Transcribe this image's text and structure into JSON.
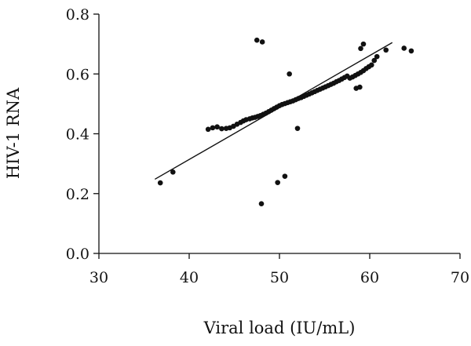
{
  "chart_data": {
    "type": "scatter",
    "title": "",
    "xlabel": "Viral load (IU/mL)",
    "ylabel": "HIV-1 RNA",
    "xlim": [
      30,
      70
    ],
    "ylim": [
      0.0,
      0.8
    ],
    "x_ticks": [
      30,
      40,
      50,
      60,
      70
    ],
    "x_tick_labels": [
      "30",
      "40",
      "50",
      "60",
      "70"
    ],
    "y_ticks": [
      0.0,
      0.2,
      0.4,
      0.6,
      0.8
    ],
    "y_tick_labels": [
      "0.0",
      "0.2",
      "0.4",
      "0.6",
      "0.8"
    ],
    "grid": false,
    "legend": "none",
    "colors": {
      "points": "#111111",
      "line": "#111111"
    },
    "trend_line": {
      "x": [
        36.2,
        62.5
      ],
      "y": [
        0.248,
        0.705
      ]
    },
    "series": [
      {
        "points": [
          {
            "x": 36.8,
            "y": 0.236
          },
          {
            "x": 38.2,
            "y": 0.272
          },
          {
            "x": 48.0,
            "y": 0.166
          },
          {
            "x": 49.8,
            "y": 0.237
          },
          {
            "x": 50.6,
            "y": 0.258
          },
          {
            "x": 52.0,
            "y": 0.418
          },
          {
            "x": 47.5,
            "y": 0.713
          },
          {
            "x": 48.1,
            "y": 0.707
          },
          {
            "x": 51.1,
            "y": 0.6
          },
          {
            "x": 42.1,
            "y": 0.415
          },
          {
            "x": 42.6,
            "y": 0.42
          },
          {
            "x": 43.1,
            "y": 0.423
          },
          {
            "x": 43.6,
            "y": 0.417
          },
          {
            "x": 44.1,
            "y": 0.418
          },
          {
            "x": 44.5,
            "y": 0.42
          },
          {
            "x": 44.9,
            "y": 0.425
          },
          {
            "x": 45.3,
            "y": 0.432
          },
          {
            "x": 45.7,
            "y": 0.438
          },
          {
            "x": 46.0,
            "y": 0.443
          },
          {
            "x": 46.3,
            "y": 0.447
          },
          {
            "x": 46.7,
            "y": 0.45
          },
          {
            "x": 47.0,
            "y": 0.453
          },
          {
            "x": 47.3,
            "y": 0.455
          },
          {
            "x": 47.6,
            "y": 0.458
          },
          {
            "x": 47.9,
            "y": 0.461
          },
          {
            "x": 48.2,
            "y": 0.465
          },
          {
            "x": 48.5,
            "y": 0.469
          },
          {
            "x": 48.8,
            "y": 0.474
          },
          {
            "x": 49.1,
            "y": 0.479
          },
          {
            "x": 49.4,
            "y": 0.484
          },
          {
            "x": 49.7,
            "y": 0.489
          },
          {
            "x": 50.0,
            "y": 0.494
          },
          {
            "x": 50.3,
            "y": 0.498
          },
          {
            "x": 50.6,
            "y": 0.501
          },
          {
            "x": 50.9,
            "y": 0.504
          },
          {
            "x": 51.2,
            "y": 0.507
          },
          {
            "x": 51.5,
            "y": 0.51
          },
          {
            "x": 51.8,
            "y": 0.514
          },
          {
            "x": 52.1,
            "y": 0.518
          },
          {
            "x": 52.4,
            "y": 0.521
          },
          {
            "x": 52.7,
            "y": 0.525
          },
          {
            "x": 53.0,
            "y": 0.529
          },
          {
            "x": 53.3,
            "y": 0.533
          },
          {
            "x": 53.6,
            "y": 0.537
          },
          {
            "x": 53.9,
            "y": 0.541
          },
          {
            "x": 54.2,
            "y": 0.545
          },
          {
            "x": 54.5,
            "y": 0.549
          },
          {
            "x": 54.8,
            "y": 0.553
          },
          {
            "x": 55.1,
            "y": 0.557
          },
          {
            "x": 55.4,
            "y": 0.561
          },
          {
            "x": 55.7,
            "y": 0.565
          },
          {
            "x": 56.0,
            "y": 0.569
          },
          {
            "x": 56.3,
            "y": 0.574
          },
          {
            "x": 56.6,
            "y": 0.578
          },
          {
            "x": 56.9,
            "y": 0.583
          },
          {
            "x": 57.2,
            "y": 0.588
          },
          {
            "x": 57.5,
            "y": 0.593
          },
          {
            "x": 57.8,
            "y": 0.586
          },
          {
            "x": 58.1,
            "y": 0.59
          },
          {
            "x": 58.4,
            "y": 0.595
          },
          {
            "x": 58.7,
            "y": 0.6
          },
          {
            "x": 59.0,
            "y": 0.605
          },
          {
            "x": 59.3,
            "y": 0.611
          },
          {
            "x": 59.6,
            "y": 0.618
          },
          {
            "x": 59.9,
            "y": 0.624
          },
          {
            "x": 60.2,
            "y": 0.63
          },
          {
            "x": 60.5,
            "y": 0.645
          },
          {
            "x": 60.8,
            "y": 0.658
          },
          {
            "x": 58.5,
            "y": 0.552
          },
          {
            "x": 58.9,
            "y": 0.556
          },
          {
            "x": 59.0,
            "y": 0.685
          },
          {
            "x": 59.3,
            "y": 0.7
          },
          {
            "x": 61.8,
            "y": 0.68
          },
          {
            "x": 63.8,
            "y": 0.686
          },
          {
            "x": 64.6,
            "y": 0.677
          }
        ]
      }
    ]
  }
}
